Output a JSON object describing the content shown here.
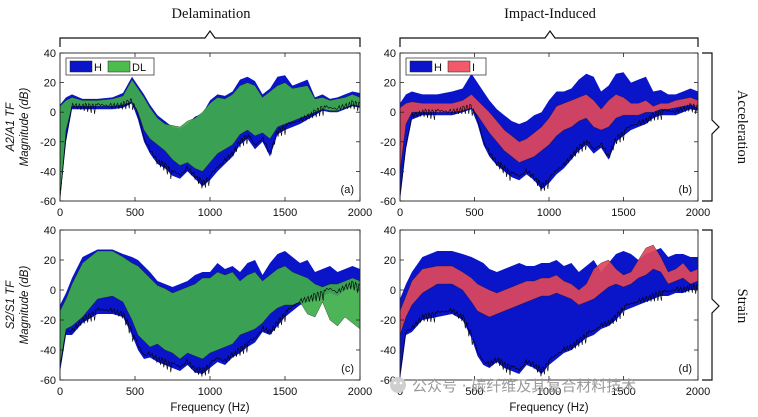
{
  "figure": {
    "column_titles": [
      "Delamination",
      "Impact-Induced"
    ],
    "row_titles": [
      "Acceleration",
      "Strain"
    ],
    "watermark": "公众号 · 碳纤维及其复合材料技术"
  },
  "chart_data": [
    {
      "type": "area",
      "panel_label": "(a)",
      "ylabel_line1": "A2/A1 TF",
      "ylabel_line2": "Magnitude (dB)",
      "xlabel": "",
      "xlim": [
        0,
        2000
      ],
      "ylim": [
        -60,
        40
      ],
      "xticks": [
        0,
        500,
        1000,
        1500,
        2000
      ],
      "yticks": [
        -60,
        -40,
        -20,
        0,
        20,
        40
      ],
      "xtick_labels": [
        "0",
        "500",
        "1000",
        "1500",
        "2000"
      ],
      "ytick_labels": [
        "-60",
        "-40",
        "-20",
        "0",
        "20",
        "40"
      ],
      "legend": [
        {
          "name": "H",
          "color": "#0a14c8"
        },
        {
          "name": "DL",
          "color": "#4cbc4c"
        }
      ],
      "x": [
        0,
        40,
        80,
        150,
        250,
        350,
        420,
        480,
        520,
        560,
        600,
        650,
        700,
        750,
        800,
        850,
        900,
        950,
        1000,
        1050,
        1100,
        1150,
        1200,
        1250,
        1300,
        1350,
        1400,
        1450,
        1500,
        1550,
        1600,
        1650,
        1700,
        1750,
        1800,
        1850,
        1900,
        1950,
        2000
      ],
      "series": [
        {
          "name": "H",
          "upper": [
            5,
            10,
            12,
            9,
            9,
            10,
            13,
            24,
            18,
            12,
            5,
            -2,
            -6,
            -10,
            -11,
            -8,
            -3,
            -1,
            8,
            12,
            11,
            14,
            22,
            24,
            21,
            12,
            16,
            24,
            25,
            18,
            20,
            22,
            10,
            12,
            9,
            10,
            12,
            14,
            13
          ],
          "lower": [
            -60,
            -20,
            2,
            2,
            2,
            2,
            3,
            6,
            -5,
            -20,
            -28,
            -35,
            -38,
            -43,
            -45,
            -40,
            -45,
            -50,
            -46,
            -40,
            -35,
            -30,
            -22,
            -18,
            -25,
            -20,
            -30,
            -15,
            -12,
            -10,
            -8,
            -5,
            -2,
            1,
            0,
            0,
            2,
            4,
            3
          ]
        },
        {
          "name": "DL",
          "upper": [
            4,
            8,
            10,
            8,
            8,
            9,
            11,
            22,
            16,
            10,
            3,
            -4,
            -8,
            -9,
            -10,
            -6,
            -4,
            0,
            6,
            10,
            9,
            12,
            18,
            20,
            18,
            10,
            14,
            18,
            20,
            16,
            17,
            18,
            9,
            10,
            8,
            9,
            10,
            12,
            10
          ],
          "lower": [
            -60,
            -12,
            4,
            4,
            4,
            4,
            5,
            7,
            0,
            -12,
            -18,
            -22,
            -26,
            -32,
            -36,
            -34,
            -38,
            -40,
            -34,
            -28,
            -25,
            -22,
            -15,
            -12,
            -16,
            -14,
            -18,
            -10,
            -8,
            -6,
            -4,
            -2,
            0,
            2,
            1,
            1,
            3,
            5,
            4
          ]
        }
      ]
    },
    {
      "type": "area",
      "panel_label": "(b)",
      "ylabel_line1": "",
      "ylabel_line2": "",
      "xlabel": "",
      "xlim": [
        0,
        2000
      ],
      "ylim": [
        -60,
        40
      ],
      "xticks": [
        0,
        500,
        1000,
        1500,
        2000
      ],
      "yticks": [
        -60,
        -40,
        -20,
        0,
        20,
        40
      ],
      "xtick_labels": [
        "0",
        "500",
        "1000",
        "1500",
        "2000"
      ],
      "ytick_labels": [
        "-60",
        "-40",
        "-20",
        "0",
        "20",
        "40"
      ],
      "legend": [
        {
          "name": "H",
          "color": "#0a14c8"
        },
        {
          "name": "I",
          "color": "#f25a6a"
        }
      ],
      "x": [
        0,
        40,
        80,
        150,
        250,
        350,
        420,
        480,
        520,
        560,
        600,
        650,
        700,
        750,
        800,
        850,
        900,
        950,
        1000,
        1050,
        1100,
        1150,
        1200,
        1250,
        1300,
        1350,
        1400,
        1450,
        1500,
        1550,
        1600,
        1650,
        1700,
        1750,
        1800,
        1850,
        1900,
        1950,
        2000
      ],
      "series": [
        {
          "name": "H",
          "upper": [
            6,
            12,
            14,
            12,
            12,
            14,
            16,
            26,
            20,
            14,
            8,
            2,
            -2,
            -6,
            -8,
            -6,
            -2,
            0,
            8,
            14,
            14,
            16,
            22,
            26,
            24,
            14,
            18,
            26,
            27,
            20,
            22,
            24,
            14,
            15,
            12,
            12,
            14,
            16,
            14
          ],
          "lower": [
            -60,
            -25,
            -5,
            -2,
            -2,
            -2,
            0,
            2,
            -8,
            -22,
            -30,
            -36,
            -40,
            -44,
            -46,
            -42,
            -46,
            -52,
            -48,
            -42,
            -38,
            -32,
            -26,
            -22,
            -28,
            -24,
            -32,
            -20,
            -16,
            -12,
            -10,
            -8,
            -4,
            -2,
            -2,
            -2,
            0,
            2,
            1
          ]
        },
        {
          "name": "I",
          "upper": [
            3,
            6,
            7,
            6,
            6,
            6,
            8,
            12,
            8,
            4,
            0,
            -6,
            -12,
            -16,
            -20,
            -18,
            -14,
            -10,
            -4,
            4,
            6,
            8,
            10,
            12,
            8,
            2,
            8,
            12,
            10,
            6,
            6,
            8,
            4,
            6,
            6,
            8,
            9,
            10,
            8
          ],
          "lower": [
            -40,
            -8,
            0,
            0,
            0,
            0,
            1,
            3,
            -2,
            -8,
            -14,
            -20,
            -26,
            -30,
            -34,
            -32,
            -30,
            -26,
            -22,
            -16,
            -12,
            -10,
            -6,
            -4,
            -10,
            -12,
            -10,
            -4,
            -2,
            -2,
            -2,
            0,
            0,
            2,
            2,
            3,
            4,
            5,
            3
          ]
        }
      ]
    },
    {
      "type": "area",
      "panel_label": "(c)",
      "ylabel_line1": "S2/S1 TF",
      "ylabel_line2": "Magnitude (dB)",
      "xlabel": "Frequency (Hz)",
      "xlim": [
        0,
        2000
      ],
      "ylim": [
        -60,
        40
      ],
      "xticks": [
        0,
        500,
        1000,
        1500,
        2000
      ],
      "yticks": [
        -60,
        -40,
        -20,
        0,
        20,
        40
      ],
      "xtick_labels": [
        "0",
        "500",
        "1000",
        "1500",
        "2000"
      ],
      "ytick_labels": [
        "-60",
        "-40",
        "-20",
        "0",
        "20",
        "40"
      ],
      "legend": [],
      "x": [
        0,
        40,
        80,
        150,
        250,
        350,
        420,
        480,
        520,
        560,
        600,
        650,
        700,
        750,
        800,
        850,
        900,
        950,
        1000,
        1050,
        1100,
        1150,
        1200,
        1250,
        1300,
        1350,
        1400,
        1450,
        1500,
        1550,
        1600,
        1650,
        1700,
        1750,
        1800,
        1850,
        1900,
        1950,
        2000
      ],
      "series": [
        {
          "name": "H",
          "upper": [
            -10,
            -2,
            8,
            22,
            27,
            27,
            24,
            22,
            20,
            16,
            12,
            6,
            4,
            2,
            4,
            6,
            10,
            12,
            12,
            18,
            14,
            16,
            12,
            18,
            20,
            10,
            18,
            24,
            26,
            22,
            18,
            20,
            12,
            14,
            16,
            12,
            14,
            16,
            14
          ],
          "lower": [
            -55,
            -30,
            -30,
            -22,
            -16,
            -16,
            -18,
            -30,
            -40,
            -46,
            -45,
            -48,
            -50,
            -52,
            -54,
            -50,
            -55,
            -56,
            -52,
            -48,
            -50,
            -45,
            -42,
            -38,
            -35,
            -28,
            -30,
            -24,
            -18,
            -14,
            -10,
            -8,
            -6,
            -4,
            -2,
            -4,
            0,
            2,
            0
          ]
        },
        {
          "name": "DL",
          "upper": [
            -14,
            -6,
            4,
            18,
            26,
            26,
            22,
            18,
            16,
            12,
            8,
            3,
            1,
            -2,
            0,
            2,
            4,
            8,
            8,
            12,
            10,
            12,
            6,
            10,
            12,
            6,
            10,
            14,
            16,
            12,
            10,
            8,
            4,
            2,
            4,
            4,
            6,
            8,
            6
          ],
          "lower": [
            -50,
            -26,
            -24,
            -18,
            -6,
            -4,
            -8,
            -20,
            -30,
            -34,
            -38,
            -36,
            -40,
            -42,
            -46,
            -42,
            -44,
            -46,
            -42,
            -40,
            -38,
            -36,
            -30,
            -28,
            -26,
            -22,
            -16,
            -12,
            -10,
            -10,
            -8,
            -16,
            -18,
            -8,
            -20,
            -24,
            -18,
            -22,
            -26
          ]
        }
      ]
    },
    {
      "type": "area",
      "panel_label": "(d)",
      "ylabel_line1": "",
      "ylabel_line2": "",
      "xlabel": "Frequency (Hz)",
      "xlim": [
        0,
        2000
      ],
      "ylim": [
        -60,
        40
      ],
      "xticks": [
        0,
        500,
        1000,
        1500,
        2000
      ],
      "yticks": [
        -60,
        -40,
        -20,
        0,
        20,
        40
      ],
      "xtick_labels": [
        "0",
        "500",
        "1000",
        "1500",
        "2000"
      ],
      "ytick_labels": [
        "-60",
        "-40",
        "-20",
        "0",
        "20",
        "40"
      ],
      "legend": [],
      "x": [
        0,
        40,
        80,
        150,
        250,
        350,
        420,
        480,
        520,
        560,
        600,
        650,
        700,
        750,
        800,
        850,
        900,
        950,
        1000,
        1050,
        1100,
        1150,
        1200,
        1250,
        1300,
        1350,
        1400,
        1450,
        1500,
        1550,
        1600,
        1650,
        1700,
        1750,
        1800,
        1850,
        1900,
        1950,
        2000
      ],
      "series": [
        {
          "name": "H",
          "upper": [
            -6,
            4,
            12,
            22,
            26,
            26,
            24,
            22,
            20,
            18,
            14,
            12,
            14,
            16,
            18,
            16,
            16,
            18,
            18,
            20,
            16,
            18,
            12,
            16,
            20,
            12,
            18,
            24,
            26,
            24,
            20,
            24,
            26,
            28,
            22,
            24,
            24,
            22,
            22
          ],
          "lower": [
            -60,
            -30,
            -28,
            -20,
            -18,
            -16,
            -20,
            -32,
            -44,
            -50,
            -52,
            -48,
            -52,
            -54,
            -56,
            -50,
            -52,
            -56,
            -50,
            -46,
            -42,
            -40,
            -36,
            -32,
            -30,
            -26,
            -24,
            -20,
            -14,
            -12,
            -10,
            -8,
            -6,
            -4,
            -4,
            -2,
            -2,
            0,
            0
          ]
        },
        {
          "name": "I",
          "upper": [
            -14,
            -4,
            6,
            14,
            16,
            16,
            12,
            8,
            4,
            2,
            0,
            -2,
            0,
            2,
            4,
            6,
            6,
            8,
            8,
            10,
            6,
            4,
            0,
            4,
            14,
            18,
            20,
            14,
            10,
            12,
            20,
            28,
            30,
            22,
            12,
            14,
            18,
            12,
            14
          ],
          "lower": [
            -30,
            -18,
            -10,
            -2,
            4,
            4,
            0,
            -8,
            -14,
            -16,
            -18,
            -16,
            -14,
            -12,
            -10,
            -8,
            -6,
            -4,
            -4,
            -2,
            -4,
            -6,
            -10,
            -8,
            -6,
            -2,
            2,
            4,
            2,
            4,
            8,
            10,
            14,
            12,
            4,
            6,
            8,
            4,
            6
          ]
        }
      ]
    }
  ]
}
